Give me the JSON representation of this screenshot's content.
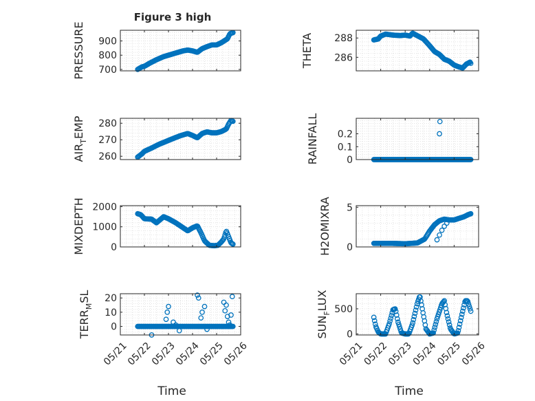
{
  "figure_title": "Figure 3 high",
  "x_tick_labels": [
    "05/21",
    "05/22",
    "05/23",
    "05/24",
    "05/25",
    "05/26"
  ],
  "x_axis_label": "Time",
  "marker_color": "#0072BD",
  "chart_data": [
    {
      "id": "pressure",
      "type": "scatter",
      "title": "Figure 3 high",
      "ylabel": "PRESSURE",
      "ylim": [
        690,
        975
      ],
      "yticks": [
        700,
        800,
        900
      ],
      "xrange": [
        "05/21",
        "05/26"
      ],
      "grid": "on (major+minor)",
      "keyframes": [
        [
          0.72,
          700
        ],
        [
          0.9,
          718
        ],
        [
          1.0,
          722
        ],
        [
          1.2,
          742
        ],
        [
          1.5,
          768
        ],
        [
          1.8,
          790
        ],
        [
          2.0,
          800
        ],
        [
          2.3,
          815
        ],
        [
          2.6,
          830
        ],
        [
          2.8,
          836
        ],
        [
          3.0,
          830
        ],
        [
          3.2,
          820
        ],
        [
          3.4,
          846
        ],
        [
          3.6,
          860
        ],
        [
          3.8,
          872
        ],
        [
          4.0,
          872
        ],
        [
          4.2,
          888
        ],
        [
          4.45,
          915
        ],
        [
          4.55,
          950
        ],
        [
          4.7,
          960
        ]
      ]
    },
    {
      "id": "theta",
      "type": "scatter",
      "ylabel": "THETA",
      "ylim": [
        284.6,
        288.8
      ],
      "yticks": [
        286,
        288
      ],
      "grid": "on (major+minor)",
      "keyframes": [
        [
          0.72,
          287.8
        ],
        [
          0.9,
          287.9
        ],
        [
          1.0,
          288.2
        ],
        [
          1.2,
          288.4
        ],
        [
          1.5,
          288.3
        ],
        [
          1.8,
          288.25
        ],
        [
          2.0,
          288.3
        ],
        [
          2.2,
          288.2
        ],
        [
          2.3,
          288.5
        ],
        [
          2.45,
          288.3
        ],
        [
          2.6,
          288.1
        ],
        [
          2.75,
          287.9
        ],
        [
          3.0,
          287.2
        ],
        [
          3.2,
          286.6
        ],
        [
          3.4,
          286.3
        ],
        [
          3.6,
          285.8
        ],
        [
          3.8,
          285.6
        ],
        [
          4.0,
          285.2
        ],
        [
          4.2,
          285.0
        ],
        [
          4.35,
          284.9
        ],
        [
          4.5,
          285.3
        ],
        [
          4.65,
          285.5
        ],
        [
          4.7,
          285.3
        ]
      ]
    },
    {
      "id": "air_temp",
      "type": "scatter",
      "ylabel": "AIR_TEMP",
      "ylabel_main": "AIR",
      "ylabel_sub": "T",
      "ylabel_rest": "EMP",
      "ylim": [
        258,
        283
      ],
      "yticks": [
        260,
        270,
        280
      ],
      "grid": "on (major+minor)",
      "keyframes": [
        [
          0.72,
          259.5
        ],
        [
          0.9,
          261.5
        ],
        [
          1.0,
          263
        ],
        [
          1.3,
          265
        ],
        [
          1.6,
          267.2
        ],
        [
          1.9,
          269
        ],
        [
          2.2,
          270.8
        ],
        [
          2.5,
          272.5
        ],
        [
          2.8,
          273.8
        ],
        [
          3.0,
          272.6
        ],
        [
          3.2,
          271.2
        ],
        [
          3.4,
          273.8
        ],
        [
          3.6,
          274.8
        ],
        [
          3.8,
          274.2
        ],
        [
          4.0,
          274.2
        ],
        [
          4.2,
          275.0
        ],
        [
          4.4,
          276.5
        ],
        [
          4.5,
          279.5
        ],
        [
          4.6,
          281.8
        ],
        [
          4.7,
          281.0
        ]
      ]
    },
    {
      "id": "mixdepth",
      "type": "scatter",
      "ylabel": "MIXDEPTH",
      "ylim": [
        0,
        2050
      ],
      "yticks": [
        0,
        1000,
        2000
      ],
      "grid": "on (major+minor)",
      "keyframes": [
        [
          0.72,
          1650
        ],
        [
          0.85,
          1600
        ],
        [
          1.0,
          1400
        ],
        [
          1.3,
          1380
        ],
        [
          1.5,
          1200
        ],
        [
          1.8,
          1500
        ],
        [
          2.0,
          1400
        ],
        [
          2.3,
          1200
        ],
        [
          2.55,
          1000
        ],
        [
          2.8,
          800
        ],
        [
          3.0,
          950
        ],
        [
          3.2,
          1050
        ],
        [
          3.35,
          700
        ],
        [
          3.5,
          300
        ],
        [
          3.7,
          80
        ],
        [
          3.9,
          60
        ],
        [
          4.05,
          80
        ],
        [
          4.2,
          250
        ],
        [
          4.3,
          400
        ],
        [
          4.4,
          800
        ],
        [
          4.5,
          500
        ],
        [
          4.6,
          200
        ],
        [
          4.7,
          120
        ]
      ]
    },
    {
      "id": "terr_msl",
      "type": "scatter",
      "ylabel": "TERR_MSL",
      "ylabel_main": "TERR",
      "ylabel_sub": "M",
      "ylabel_rest": "SL",
      "ylim": [
        -6,
        23
      ],
      "yticks": [
        0,
        10,
        20
      ],
      "grid": "on (major+minor)",
      "baseline": 0,
      "spikes": [
        [
          1.3,
          -6
        ],
        [
          1.9,
          5
        ],
        [
          1.95,
          10
        ],
        [
          2.0,
          14
        ],
        [
          2.2,
          3
        ],
        [
          2.3,
          1
        ],
        [
          2.45,
          -3
        ],
        [
          3.2,
          22
        ],
        [
          3.25,
          20
        ],
        [
          3.35,
          6
        ],
        [
          3.4,
          10
        ],
        [
          3.5,
          14
        ],
        [
          3.6,
          -2
        ],
        [
          4.3,
          17
        ],
        [
          4.35,
          11
        ],
        [
          4.4,
          15
        ],
        [
          4.45,
          7
        ],
        [
          4.5,
          3
        ],
        [
          4.55,
          1
        ],
        [
          4.6,
          8
        ],
        [
          4.65,
          21
        ]
      ]
    },
    {
      "id": "rainfall",
      "type": "scatter",
      "ylabel": "RAINFALL",
      "ylim": [
        0,
        0.32
      ],
      "yticks": [
        0,
        0.1,
        0.2
      ],
      "ytick_labels": [
        "0",
        "0.1",
        "0.2"
      ],
      "grid": "on (major+minor)",
      "baseline": 0,
      "spikes": [
        [
          3.4,
          0.2
        ],
        [
          3.42,
          0.295
        ]
      ]
    },
    {
      "id": "h2omixra",
      "type": "scatter",
      "ylabel": "H2OMIXRA",
      "ylim": [
        0,
        5.2
      ],
      "yticks": [
        0,
        5
      ],
      "grid": "on (major+minor)",
      "keyframes": [
        [
          0.72,
          0.45
        ],
        [
          1.0,
          0.45
        ],
        [
          1.5,
          0.45
        ],
        [
          2.0,
          0.4
        ],
        [
          2.5,
          0.5
        ],
        [
          2.8,
          1.0
        ],
        [
          3.0,
          2.0
        ],
        [
          3.2,
          2.8
        ],
        [
          3.4,
          3.3
        ],
        [
          3.6,
          3.5
        ],
        [
          3.8,
          3.4
        ],
        [
          4.0,
          3.4
        ],
        [
          4.2,
          3.6
        ],
        [
          4.4,
          3.8
        ],
        [
          4.6,
          4.1
        ],
        [
          4.7,
          4.2
        ]
      ],
      "extra_points": [
        [
          3.3,
          0.9
        ],
        [
          3.4,
          1.5
        ],
        [
          3.5,
          2.1
        ],
        [
          3.6,
          2.6
        ],
        [
          3.7,
          3.0
        ]
      ]
    },
    {
      "id": "sun_flux",
      "type": "scatter",
      "ylabel": "SUN_FLUX",
      "ylabel_main": "SUN",
      "ylabel_sub": "F",
      "ylabel_rest": "LUX",
      "ylim": [
        -20,
        800
      ],
      "yticks": [
        0,
        500
      ],
      "grid": "on (major+minor)",
      "keyframes": [
        [
          0.72,
          330
        ],
        [
          0.8,
          150
        ],
        [
          0.9,
          40
        ],
        [
          1.0,
          0
        ],
        [
          1.2,
          0
        ],
        [
          1.35,
          200
        ],
        [
          1.5,
          480
        ],
        [
          1.6,
          500
        ],
        [
          1.7,
          250
        ],
        [
          1.85,
          20
        ],
        [
          2.0,
          0
        ],
        [
          2.15,
          0
        ],
        [
          2.3,
          200
        ],
        [
          2.5,
          620
        ],
        [
          2.6,
          760
        ],
        [
          2.7,
          500
        ],
        [
          2.85,
          100
        ],
        [
          3.0,
          0
        ],
        [
          3.15,
          20
        ],
        [
          3.3,
          300
        ],
        [
          3.5,
          600
        ],
        [
          3.6,
          660
        ],
        [
          3.7,
          400
        ],
        [
          3.85,
          100
        ],
        [
          4.0,
          0
        ],
        [
          4.15,
          20
        ],
        [
          4.3,
          350
        ],
        [
          4.45,
          660
        ],
        [
          4.55,
          660
        ],
        [
          4.65,
          500
        ],
        [
          4.7,
          420
        ]
      ]
    }
  ]
}
